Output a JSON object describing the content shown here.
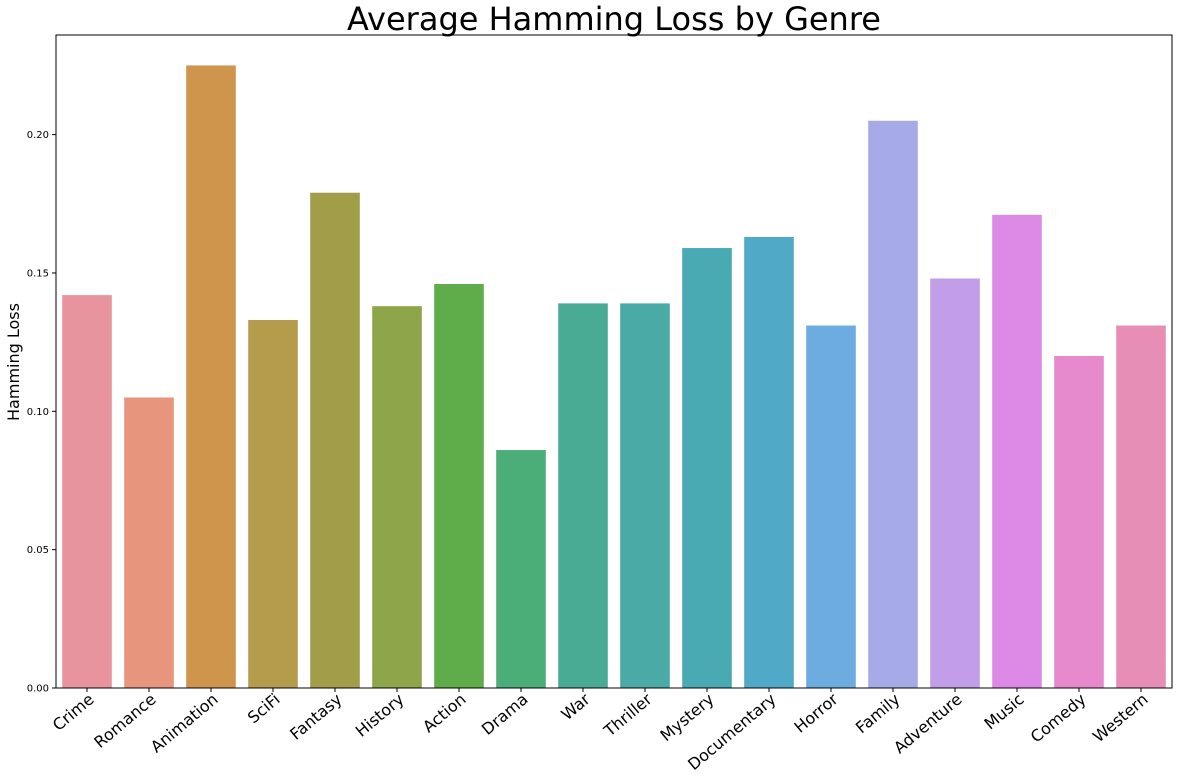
{
  "chart_data": {
    "type": "bar",
    "title": "Average Hamming Loss by Genre",
    "xlabel": "",
    "ylabel": "Hamming Loss",
    "ylim": [
      0,
      0.236
    ],
    "yticks": [
      "0.00",
      "0.05",
      "0.10",
      "0.15",
      "0.20"
    ],
    "grid": false,
    "categories": [
      "Crime",
      "Romance",
      "Animation",
      "SciFi",
      "Fantasy",
      "History",
      "Action",
      "Drama",
      "War",
      "Thriller",
      "Mystery",
      "Documentary",
      "Horror",
      "Family",
      "Adventure",
      "Music",
      "Comedy",
      "Western"
    ],
    "values": [
      0.142,
      0.105,
      0.225,
      0.133,
      0.179,
      0.138,
      0.146,
      0.086,
      0.139,
      0.139,
      0.159,
      0.163,
      0.131,
      0.205,
      0.148,
      0.171,
      0.12,
      0.131
    ],
    "colors": [
      "#e8949f",
      "#e7957d",
      "#cf954d",
      "#b59b4c",
      "#a29d48",
      "#8ea549",
      "#5fad4a",
      "#4bae78",
      "#4aab95",
      "#4aaaa6",
      "#4aaab4",
      "#50aac7",
      "#6cace0",
      "#a6abe8",
      "#c29ee8",
      "#dc8ae6",
      "#e78acd",
      "#e68eb5"
    ]
  }
}
